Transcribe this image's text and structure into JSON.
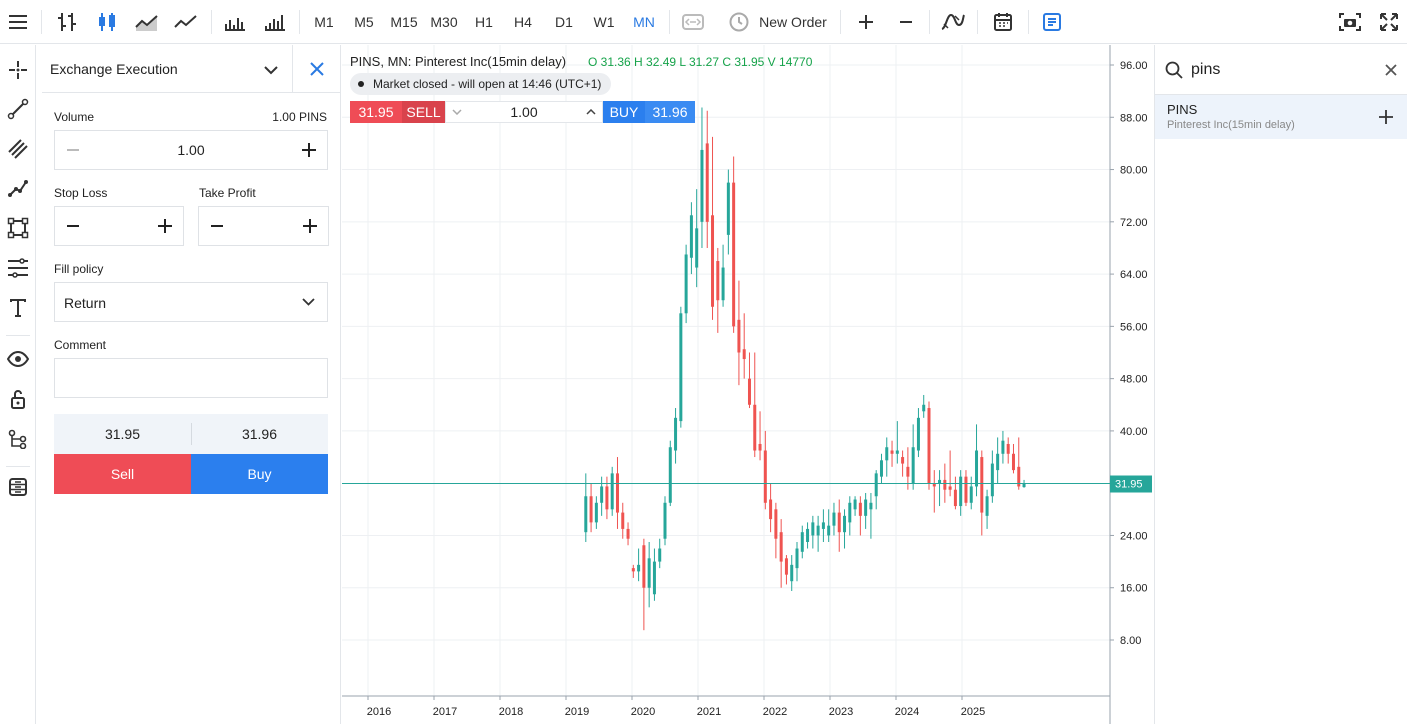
{
  "toolbar": {
    "timeframes": [
      "M1",
      "M5",
      "M15",
      "M30",
      "H1",
      "H4",
      "D1",
      "W1",
      "MN"
    ],
    "active_timeframe": "MN",
    "new_order_label": "New Order"
  },
  "order_panel": {
    "title": "Exchange Execution",
    "volume_label": "Volume",
    "volume_value_text": "1.00 PINS",
    "volume": "1.00",
    "stop_loss_label": "Stop Loss",
    "take_profit_label": "Take Profit",
    "fill_policy_label": "Fill policy",
    "fill_policy_value": "Return",
    "comment_label": "Comment",
    "comment_value": "",
    "bid": "31.95",
    "ask": "31.96",
    "sell_label": "Sell",
    "buy_label": "Buy"
  },
  "chart_header": {
    "title": "PINS, MN: Pinterest Inc(15min delay)",
    "ohlc": "O 31.36 H 32.49 L 31.27 C 31.95 V 14770",
    "market_status": "Market closed - will open at 14:46 (UTC+1)",
    "sell_price": "31.95",
    "sell_label": "SELL",
    "volume": "1.00",
    "buy_label": "BUY",
    "buy_price": "31.96"
  },
  "search": {
    "query": "pins",
    "results": [
      {
        "symbol": "PINS",
        "description": "Pinterest Inc(15min delay)"
      }
    ]
  },
  "colors": {
    "up": "#26a69a",
    "down": "#ef5350",
    "accent": "#2a7ae2",
    "price_line": "#26a69a"
  },
  "chart_data": {
    "type": "candlestick",
    "symbol": "PINS",
    "timeframe": "MN",
    "current_price": 31.95,
    "current_price_label": "31.95",
    "ylim": [
      0,
      99
    ],
    "y_ticks": [
      "96.00",
      "88.00",
      "80.00",
      "72.00",
      "64.00",
      "56.00",
      "48.00",
      "40.00",
      "24.00",
      "16.00",
      "8.00"
    ],
    "y_tick_values": [
      96,
      88,
      80,
      72,
      64,
      56,
      48,
      40,
      24,
      16,
      8
    ],
    "x_ticks": [
      "2016",
      "2017",
      "2018",
      "2019",
      "2020",
      "2021",
      "2022",
      "2023",
      "2024",
      "2025"
    ],
    "x_first_year": 2016,
    "grid": true,
    "candles": [
      [
        2019.3,
        24.5,
        30.0,
        23.0,
        33.5
      ],
      [
        2019.38,
        30.0,
        26.0,
        24.5,
        32.0
      ],
      [
        2019.46,
        26.0,
        29.0,
        25.0,
        30.0
      ],
      [
        2019.54,
        29.0,
        31.5,
        27.0,
        33.0
      ],
      [
        2019.62,
        31.5,
        28.0,
        26.5,
        33.0
      ],
      [
        2019.7,
        28.0,
        33.5,
        27.0,
        34.5
      ],
      [
        2019.78,
        33.5,
        27.5,
        25.0,
        36.0
      ],
      [
        2019.86,
        27.5,
        25.0,
        23.5,
        29.0
      ],
      [
        2019.94,
        25.0,
        23.5,
        22.5,
        26.0
      ],
      [
        2020.02,
        19.0,
        18.5,
        17.5,
        19.5
      ],
      [
        2020.1,
        18.5,
        19.5,
        17.0,
        22.0
      ],
      [
        2020.18,
        22.5,
        16.0,
        9.5,
        23.5
      ],
      [
        2020.26,
        16.0,
        20.5,
        13.0,
        23.0
      ],
      [
        2020.34,
        15.0,
        20.0,
        14.0,
        22.0
      ],
      [
        2020.42,
        20.0,
        22.0,
        19.0,
        23.5
      ],
      [
        2020.5,
        23.5,
        29.0,
        22.5,
        30.0
      ],
      [
        2020.58,
        29.0,
        37.5,
        28.5,
        38.5
      ],
      [
        2020.66,
        37.0,
        42.0,
        35.0,
        43.5
      ],
      [
        2020.74,
        41.5,
        58.0,
        40.5,
        59.0
      ],
      [
        2020.82,
        58.0,
        67.0,
        56.5,
        68.5
      ],
      [
        2020.9,
        66.5,
        73.0,
        64.0,
        75.0
      ],
      [
        2020.98,
        65.0,
        71.0,
        62.0,
        77.0
      ],
      [
        2021.06,
        72.0,
        83.0,
        68.0,
        89.5
      ],
      [
        2021.14,
        84.0,
        72.0,
        68.0,
        89.0
      ],
      [
        2021.22,
        73.0,
        59.0,
        57.0,
        85.0
      ],
      [
        2021.3,
        66.0,
        60.0,
        55.0,
        68.0
      ],
      [
        2021.38,
        60.0,
        65.0,
        59.0,
        68.5
      ],
      [
        2021.46,
        70.0,
        78.0,
        67.0,
        80.0
      ],
      [
        2021.54,
        78.0,
        56.0,
        55.0,
        82.0
      ],
      [
        2021.62,
        57.0,
        52.0,
        47.0,
        63.0
      ],
      [
        2021.7,
        52.5,
        51.0,
        48.0,
        58.0
      ],
      [
        2021.78,
        48.0,
        44.0,
        43.5,
        52.0
      ],
      [
        2021.86,
        44.0,
        37.0,
        36.0,
        52.0
      ],
      [
        2021.94,
        38.0,
        37.0,
        35.5,
        43.0
      ],
      [
        2022.02,
        37.0,
        29.0,
        28.0,
        40.0
      ],
      [
        2022.1,
        29.5,
        26.5,
        24.5,
        32.0
      ],
      [
        2022.18,
        28.0,
        23.5,
        20.5,
        29.0
      ],
      [
        2022.26,
        24.5,
        20.0,
        16.0,
        26.5
      ],
      [
        2022.34,
        20.5,
        18.0,
        16.5,
        21.0
      ],
      [
        2022.42,
        17.0,
        19.5,
        15.5,
        21.0
      ],
      [
        2022.5,
        19.0,
        22.0,
        17.0,
        23.0
      ],
      [
        2022.58,
        21.5,
        24.5,
        20.5,
        25.5
      ],
      [
        2022.66,
        23.0,
        25.0,
        22.0,
        26.0
      ],
      [
        2022.74,
        24.0,
        26.0,
        22.0,
        27.0
      ],
      [
        2022.82,
        24.0,
        25.5,
        21.5,
        27.0
      ],
      [
        2022.9,
        25.0,
        26.0,
        23.0,
        28.0
      ],
      [
        2022.98,
        24.0,
        25.5,
        23.0,
        28.0
      ],
      [
        2023.06,
        25.5,
        27.5,
        24.0,
        29.0
      ],
      [
        2023.14,
        27.5,
        24.5,
        21.5,
        29.5
      ],
      [
        2023.22,
        24.5,
        27.0,
        22.0,
        28.0
      ],
      [
        2023.3,
        26.0,
        29.0,
        24.0,
        30.0
      ],
      [
        2023.38,
        28.0,
        29.5,
        27.0,
        30.0
      ],
      [
        2023.46,
        29.0,
        27.0,
        24.0,
        30.0
      ],
      [
        2023.54,
        27.0,
        29.5,
        25.0,
        30.5
      ],
      [
        2023.62,
        28.0,
        29.0,
        23.5,
        30.5
      ],
      [
        2023.7,
        30.0,
        33.5,
        28.0,
        34.0
      ],
      [
        2023.78,
        33.0,
        35.5,
        32.0,
        36.5
      ],
      [
        2023.86,
        35.5,
        37.5,
        33.0,
        39.0
      ],
      [
        2023.94,
        37.0,
        36.5,
        34.5,
        38.5
      ],
      [
        2024.02,
        36.5,
        37.0,
        35.0,
        41.5
      ],
      [
        2024.1,
        36.0,
        35.0,
        33.0,
        37.0
      ],
      [
        2024.18,
        34.5,
        33.0,
        31.0,
        37.5
      ],
      [
        2024.26,
        32.0,
        37.5,
        31.0,
        41.0
      ],
      [
        2024.34,
        37.0,
        42.0,
        36.0,
        43.5
      ],
      [
        2024.42,
        43.0,
        44.0,
        42.0,
        45.5
      ],
      [
        2024.5,
        43.5,
        32.0,
        31.0,
        44.5
      ],
      [
        2024.58,
        32.0,
        31.5,
        27.5,
        34.0
      ],
      [
        2024.66,
        32.0,
        32.5,
        28.5,
        34.0
      ],
      [
        2024.74,
        32.5,
        31.0,
        29.0,
        35.0
      ],
      [
        2024.82,
        31.5,
        31.0,
        30.0,
        37.0
      ],
      [
        2024.9,
        31.0,
        28.5,
        28.0,
        33.0
      ],
      [
        2024.98,
        28.5,
        33.0,
        27.0,
        34.0
      ],
      [
        2025.06,
        33.0,
        29.0,
        28.5,
        34.0
      ],
      [
        2025.14,
        29.0,
        31.5,
        28.0,
        33.0
      ],
      [
        2025.22,
        31.5,
        37.0,
        30.0,
        41.0
      ],
      [
        2025.3,
        36.0,
        27.5,
        24.0,
        37.0
      ],
      [
        2025.38,
        27.0,
        30.0,
        25.0,
        31.0
      ],
      [
        2025.46,
        30.0,
        35.0,
        29.0,
        37.0
      ],
      [
        2025.54,
        34.0,
        36.5,
        32.0,
        39.0
      ],
      [
        2025.62,
        36.5,
        38.5,
        35.0,
        40.0
      ],
      [
        2025.7,
        38.0,
        36.5,
        35.0,
        39.0
      ],
      [
        2025.78,
        36.5,
        34.0,
        33.5,
        38.0
      ],
      [
        2025.86,
        34.5,
        31.5,
        31.0,
        39.0
      ],
      [
        2025.94,
        31.4,
        31.9,
        31.3,
        32.5
      ]
    ]
  }
}
